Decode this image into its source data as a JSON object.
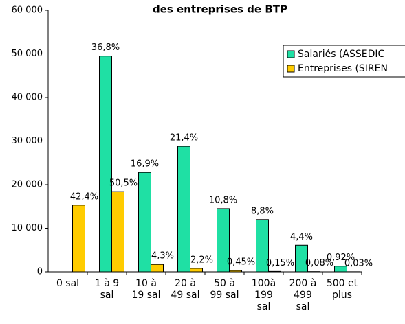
{
  "chart_data": {
    "type": "bar",
    "title": "des entreprises de BTP",
    "categories": [
      "0 sal",
      "1 à 9\nsal",
      "10 à\n19 sal",
      "20 à\n49 sal",
      "50 à\n99 sal",
      "100à\n199\nsal",
      "200 à\n499\nsal",
      "500 et\nplus"
    ],
    "series": [
      {
        "name": "Salariés (ASSEDIC",
        "color": "#1fe0a4",
        "values": [
          null,
          49500,
          22800,
          28800,
          14500,
          12000,
          6100,
          1300
        ],
        "share_labels": [
          null,
          "36,8%",
          "16,9%",
          "21,4%",
          "10,8%",
          "8,8%",
          "4,4%",
          "0,92%"
        ]
      },
      {
        "name": "Entreprises (SIREN",
        "color": "#ffcc00",
        "values": [
          15300,
          18400,
          1700,
          800,
          300,
          100,
          50,
          20
        ],
        "share_labels": [
          "42,4%",
          "50,5%",
          "4,3%",
          "2,2%",
          "0,45%",
          "0,15%",
          "0,08%",
          "0,03%"
        ]
      }
    ],
    "ylim": [
      0,
      60000
    ],
    "yticks": [
      {
        "value": 0,
        "label": "0"
      },
      {
        "value": 10000,
        "label": "10 000"
      },
      {
        "value": 20000,
        "label": "20 000"
      },
      {
        "value": 30000,
        "label": "30 000"
      },
      {
        "value": 40000,
        "label": "40 000"
      },
      {
        "value": 50000,
        "label": "50 000"
      },
      {
        "value": 60000,
        "label": "60 000"
      }
    ],
    "legend": "upper right"
  }
}
